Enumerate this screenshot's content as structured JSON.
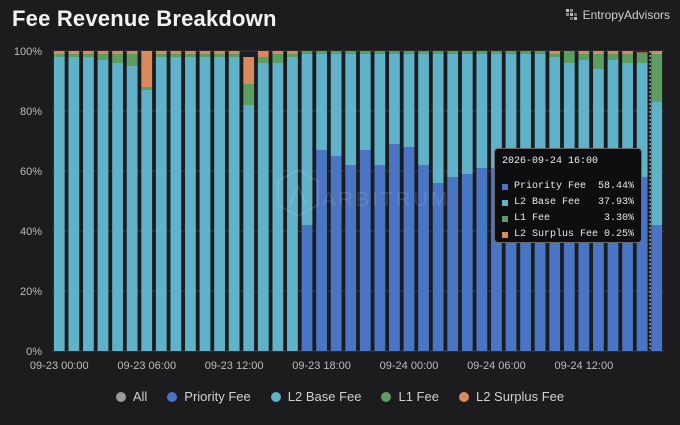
{
  "header": {
    "title": "Fee Revenue Breakdown",
    "brand": "EntropyAdvisors"
  },
  "watermark": "ARBITRUM",
  "colors": {
    "priority": "#4a74c4",
    "l2base": "#5fb2c8",
    "l1": "#5c9e62",
    "surplus": "#d98a5a",
    "all": "#9a9a9a"
  },
  "tooltip": {
    "title": "2026-09-24 16:00",
    "rows": [
      {
        "name": "Priority Fee",
        "value": "58.44%",
        "color": "#4a74c4"
      },
      {
        "name": "L2 Base Fee",
        "value": "37.93%",
        "color": "#5fb2c8"
      },
      {
        "name": "L1 Fee",
        "value": "3.30%",
        "color": "#5c9e62"
      },
      {
        "name": "L2 Surplus Fee",
        "value": "0.25%",
        "color": "#d98a5a"
      }
    ]
  },
  "legend": [
    {
      "label": "All",
      "color": "#9a9a9a"
    },
    {
      "label": "Priority Fee",
      "color": "#4a74c4"
    },
    {
      "label": "L2 Base Fee",
      "color": "#5fb2c8"
    },
    {
      "label": "L1 Fee",
      "color": "#5c9e62"
    },
    {
      "label": "L2 Surplus Fee",
      "color": "#d98a5a"
    }
  ],
  "chart_data": {
    "type": "bar",
    "stacked": true,
    "y_unit": "%",
    "ylim": [
      0,
      100
    ],
    "y_ticks": [
      "0%",
      "20%",
      "40%",
      "60%",
      "80%",
      "100%"
    ],
    "x_tick_labels": [
      {
        "label": "09-23 00:00",
        "index": 0
      },
      {
        "label": "09-23 06:00",
        "index": 6
      },
      {
        "label": "09-23 12:00",
        "index": 12
      },
      {
        "label": "09-23 18:00",
        "index": 18
      },
      {
        "label": "09-24 00:00",
        "index": 24
      },
      {
        "label": "09-24 06:00",
        "index": 30
      },
      {
        "label": "09-24 12:00",
        "index": 36
      }
    ],
    "series": [
      {
        "name": "Priority Fee",
        "values": [
          0,
          0,
          0,
          0,
          0,
          0,
          0,
          0,
          0,
          0,
          0,
          0,
          0,
          0,
          0,
          0,
          0,
          42,
          67,
          65,
          62,
          67,
          62,
          69,
          68,
          62,
          56,
          58,
          59,
          61,
          61,
          61,
          58,
          58,
          58,
          58,
          58,
          58,
          58,
          58,
          58,
          42
        ]
      },
      {
        "name": "L2 Base Fee",
        "values": [
          98,
          98,
          98,
          97,
          96,
          95,
          87,
          98,
          98,
          98,
          98,
          98,
          98,
          82,
          96,
          96,
          98,
          57,
          32,
          34,
          37,
          32,
          37,
          30,
          31,
          37,
          43,
          41,
          40,
          38,
          38,
          38,
          41,
          41,
          40,
          38,
          39,
          36,
          39,
          38,
          38,
          41
        ]
      },
      {
        "name": "L1 Fee",
        "values": [
          1,
          1,
          1,
          2,
          3,
          4,
          1,
          1,
          1,
          1,
          1,
          1,
          1,
          7,
          2,
          3,
          1,
          1,
          1,
          1,
          1,
          1,
          1,
          1,
          1,
          1,
          1,
          1,
          1,
          1,
          1,
          1,
          1,
          1,
          1,
          4,
          2,
          5,
          2,
          3,
          3.3,
          16
        ]
      },
      {
        "name": "L2 Surplus Fee",
        "values": [
          1,
          1,
          1,
          1,
          1,
          1,
          12,
          1,
          1,
          1,
          1,
          1,
          1,
          9,
          2,
          1,
          1,
          0,
          0,
          0,
          0,
          0,
          0,
          0,
          0,
          0,
          0,
          0,
          0,
          0,
          0,
          0,
          0,
          0,
          1,
          0,
          1,
          1,
          1,
          1,
          0.25,
          1
        ]
      }
    ]
  }
}
